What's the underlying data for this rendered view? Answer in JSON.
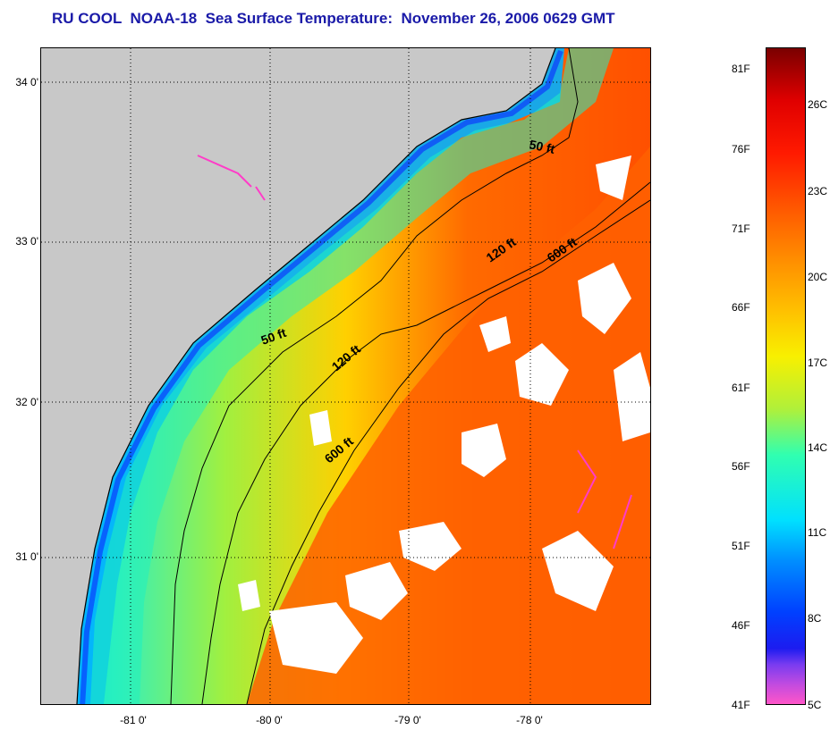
{
  "title": "RU COOL  NOAA-18  Sea Surface Temperature:  November 26, 2006 0629 GMT",
  "map": {
    "lat_labels": [
      "34 0'",
      "33 0'",
      "32 0'",
      "31 0'"
    ],
    "lon_labels": [
      "-81 0'",
      "-80 0'",
      "-79 0'",
      "-78 0'"
    ],
    "contour_labels": [
      "50 ft",
      "120 ft",
      "600 ft",
      "50 ft",
      "120 ft",
      "600 ft"
    ],
    "colors": {
      "land": "#c8c8c8",
      "cloud": "#ffffff",
      "contour": "#000000"
    }
  },
  "colorbar": {
    "fahrenheit": [
      "81F",
      "76F",
      "71F",
      "66F",
      "61F",
      "56F",
      "51F",
      "46F",
      "41F"
    ],
    "celsius": [
      "26C",
      "23C",
      "20C",
      "17C",
      "14C",
      "11C",
      "8C",
      "5C"
    ]
  }
}
